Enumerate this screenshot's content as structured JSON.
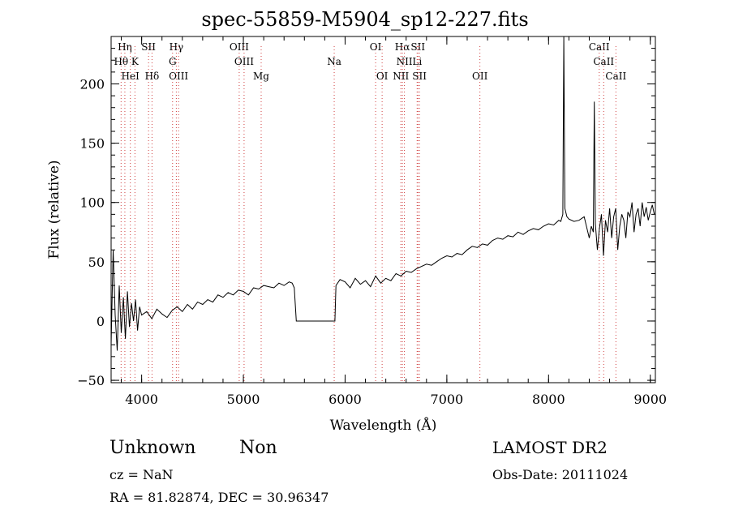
{
  "chart_data": {
    "type": "line",
    "title": "spec-55859-M5904_sp12-227.fits",
    "xlabel": "Wavelength (Å)",
    "ylabel": "Flux (relative)",
    "xlim": [
      3700,
      9050
    ],
    "ylim": [
      -52,
      240
    ],
    "xticks": [
      4000,
      5000,
      6000,
      7000,
      8000,
      9000
    ],
    "yticks": [
      -50,
      0,
      50,
      100,
      150,
      200
    ],
    "grid": false,
    "line_color": "#000000",
    "marker_color": "#d04040",
    "series": [
      {
        "x": [
          3700,
          3720,
          3740,
          3760,
          3780,
          3800,
          3820,
          3840,
          3860,
          3880,
          3900,
          3920,
          3940,
          3960,
          3980,
          4000,
          4050,
          4100,
          4150,
          4200,
          4250,
          4300,
          4350,
          4400,
          4450,
          4500,
          4550,
          4600,
          4650,
          4700,
          4750,
          4800,
          4850,
          4900,
          4950,
          5000,
          5050,
          5100,
          5150,
          5200,
          5250,
          5300,
          5350,
          5400,
          5450,
          5480,
          5500,
          5520,
          5900,
          5910,
          5950,
          6000,
          6050,
          6100,
          6150,
          6200,
          6250,
          6300,
          6350,
          6400,
          6450,
          6500,
          6550,
          6600,
          6650,
          6700,
          6750,
          6800,
          6850,
          6900,
          6950,
          7000,
          7050,
          7100,
          7150,
          7200,
          7250,
          7300,
          7350,
          7400,
          7450,
          7500,
          7550,
          7600,
          7650,
          7700,
          7750,
          7800,
          7850,
          7900,
          7950,
          8000,
          8050,
          8100,
          8120,
          8140,
          8150,
          8160,
          8180,
          8200,
          8250,
          8300,
          8350,
          8400,
          8420,
          8440,
          8450,
          8460,
          8480,
          8500,
          8520,
          8540,
          8560,
          8580,
          8600,
          8620,
          8640,
          8660,
          8680,
          8700,
          8720,
          8740,
          8760,
          8780,
          8800,
          8820,
          8840,
          8860,
          8880,
          8900,
          8920,
          8940,
          8960,
          8980,
          9000,
          9020,
          9040
        ],
        "y": [
          -20,
          60,
          5,
          -25,
          30,
          -10,
          20,
          -15,
          25,
          -5,
          15,
          0,
          18,
          -8,
          12,
          5,
          8,
          2,
          10,
          6,
          3,
          9,
          12,
          8,
          14,
          10,
          16,
          14,
          18,
          16,
          22,
          20,
          24,
          22,
          26,
          25,
          22,
          28,
          27,
          30,
          29,
          28,
          32,
          30,
          33,
          32,
          28,
          0,
          0,
          30,
          35,
          33,
          28,
          36,
          31,
          34,
          29,
          38,
          32,
          36,
          34,
          40,
          38,
          42,
          41,
          44,
          46,
          48,
          47,
          50,
          53,
          55,
          54,
          57,
          56,
          60,
          63,
          62,
          65,
          64,
          68,
          70,
          69,
          72,
          71,
          75,
          73,
          76,
          78,
          77,
          80,
          82,
          81,
          85,
          84,
          90,
          240,
          95,
          88,
          86,
          84,
          85,
          88,
          70,
          80,
          75,
          185,
          82,
          60,
          78,
          90,
          55,
          85,
          75,
          95,
          70,
          88,
          95,
          60,
          80,
          90,
          85,
          70,
          92,
          88,
          100,
          75,
          90,
          95,
          80,
          100,
          88,
          96,
          85,
          92,
          98,
          90
        ]
      }
    ],
    "line_markers": [
      {
        "label": "Hη",
        "x": 3835,
        "row": 0
      },
      {
        "label": "SII",
        "x": 4068,
        "row": 0
      },
      {
        "label": "Hγ",
        "x": 4341,
        "row": 0
      },
      {
        "label": "OIII",
        "x": 4959,
        "row": 0
      },
      {
        "label": "OI",
        "x": 6300,
        "row": 0
      },
      {
        "label": "Hα",
        "x": 6563,
        "row": 0
      },
      {
        "label": "SII",
        "x": 6716,
        "row": 0
      },
      {
        "label": "CaII",
        "x": 8498,
        "row": 0
      },
      {
        "label": "Hθ",
        "x": 3798,
        "row": 1
      },
      {
        "label": "K",
        "x": 3934,
        "row": 1
      },
      {
        "label": "G",
        "x": 4304,
        "row": 1
      },
      {
        "label": "OIII",
        "x": 5007,
        "row": 1
      },
      {
        "label": "Na",
        "x": 5893,
        "row": 1
      },
      {
        "label": "NII",
        "x": 6583,
        "row": 1
      },
      {
        "label": "Li",
        "x": 6708,
        "row": 1
      },
      {
        "label": "CaII",
        "x": 8542,
        "row": 1
      },
      {
        "label": "HeI",
        "x": 3889,
        "row": 2
      },
      {
        "label": "Hδ",
        "x": 4102,
        "row": 2
      },
      {
        "label": "OIII",
        "x": 4363,
        "row": 2
      },
      {
        "label": "Mg",
        "x": 5175,
        "row": 2
      },
      {
        "label": "OI",
        "x": 6364,
        "row": 2
      },
      {
        "label": "NII",
        "x": 6548,
        "row": 2
      },
      {
        "label": "SII",
        "x": 6731,
        "row": 2
      },
      {
        "label": "OII",
        "x": 7325,
        "row": 2
      },
      {
        "label": "CaII",
        "x": 8662,
        "row": 2
      }
    ]
  },
  "info": {
    "classification": "Unknown",
    "subclass": "Non",
    "cz": "cz = NaN",
    "radec": "RA =  81.82874, DEC =  30.96347",
    "survey": "LAMOST DR2",
    "obsdate": "Obs-Date: 20111024"
  }
}
